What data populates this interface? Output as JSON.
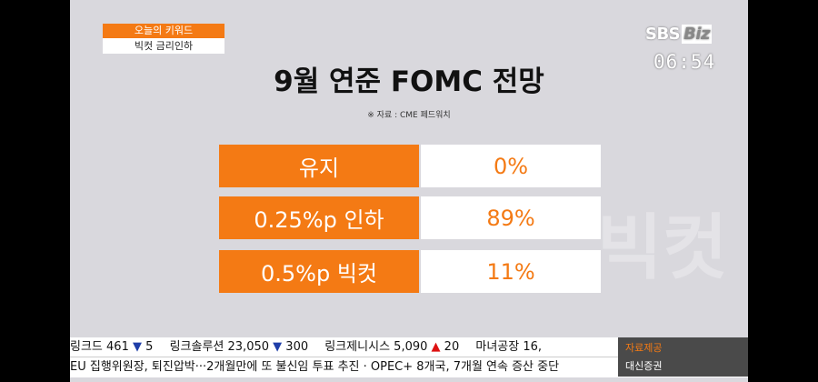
{
  "keyword": {
    "header": "오늘의 키워드",
    "text": "빅컷 금리인하"
  },
  "logo": {
    "brand": "SBS",
    "sub": "Biz"
  },
  "clock": "06:54",
  "title": "9월 연준 FOMC 전망",
  "source": "※ 자료 : CME 페드워치",
  "watermark": "빅컷",
  "rows": [
    {
      "label": "유지",
      "value": "0%"
    },
    {
      "label": "0.25%p 인하",
      "value": "89%"
    },
    {
      "label": "0.5%p 빅컷",
      "value": "11%"
    }
  ],
  "ticker1": [
    {
      "name": "링크드",
      "price": "461",
      "arrow": "▼",
      "change": "5",
      "dir": "down"
    },
    {
      "name": "링크솔루션",
      "price": "23,050",
      "arrow": "▼",
      "change": "300",
      "dir": "down"
    },
    {
      "name": "링크제니시스",
      "price": "5,090",
      "arrow": "▲",
      "change": "20",
      "dir": "up"
    },
    {
      "name": "마녀공장",
      "price": "16,",
      "arrow": "",
      "change": "",
      "dir": ""
    }
  ],
  "ticker2": "EU 집행위원장, 퇴진압박···2개월만에 또 불신임 투표 추진 · OPEC+ 8개국, 7개월 연속 증산 중단",
  "provider": {
    "label": "자료제공",
    "name": "대신증권"
  },
  "colors": {
    "accent": "#f47a14",
    "background": "#d9d8dd"
  }
}
